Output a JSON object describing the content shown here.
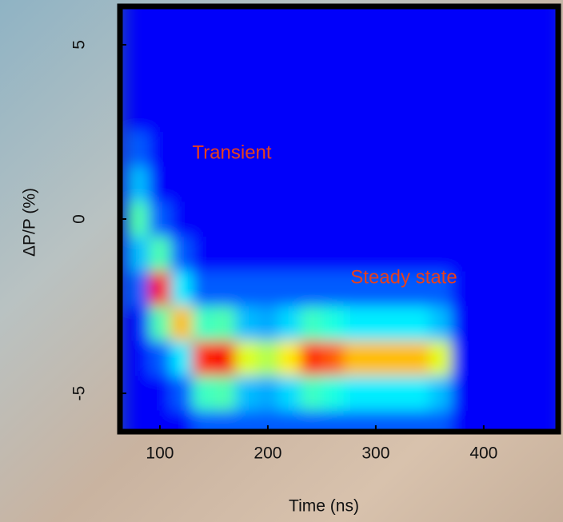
{
  "chart_data": {
    "type": "heatmap",
    "x_label": "Time (ns)",
    "y_label": "ΔP/P (%)",
    "annotations": [
      "Transient",
      "Steady state"
    ],
    "xlim": [
      63,
      469
    ],
    "ylim": [
      -6.1,
      6.1
    ],
    "xticks": [
      100,
      200,
      300,
      400
    ],
    "yticks": [
      5,
      0,
      -5
    ],
    "colormap": "jet",
    "x": [
      80,
      100,
      120,
      140,
      160,
      180,
      200,
      220,
      240,
      260,
      280,
      300,
      320,
      340,
      360,
      380,
      400,
      420,
      440,
      460
    ],
    "y": [
      6,
      5,
      4,
      3,
      2,
      1,
      0,
      -1,
      -2,
      -3,
      -4,
      -5,
      -6
    ],
    "z": [
      [
        0.1,
        0.1,
        0.1,
        0.1,
        0.1,
        0.1,
        0.1,
        0.1,
        0.1,
        0.1,
        0.1,
        0.1,
        0.1,
        0.1,
        0.1,
        0.1,
        0.1,
        0.1,
        0.1,
        0.1
      ],
      [
        0.1,
        0.1,
        0.1,
        0.1,
        0.1,
        0.1,
        0.1,
        0.1,
        0.1,
        0.1,
        0.1,
        0.1,
        0.1,
        0.1,
        0.1,
        0.1,
        0.1,
        0.1,
        0.1,
        0.1
      ],
      [
        0.1,
        0.1,
        0.1,
        0.1,
        0.1,
        0.1,
        0.1,
        0.1,
        0.1,
        0.1,
        0.1,
        0.1,
        0.1,
        0.1,
        0.1,
        0.1,
        0.1,
        0.1,
        0.1,
        0.1
      ],
      [
        0.1,
        0.1,
        0.1,
        0.1,
        0.1,
        0.1,
        0.1,
        0.1,
        0.1,
        0.1,
        0.1,
        0.1,
        0.1,
        0.1,
        0.1,
        0.1,
        0.1,
        0.1,
        0.1,
        0.1
      ],
      [
        0.2,
        0.1,
        0.1,
        0.1,
        0.1,
        0.1,
        0.1,
        0.1,
        0.1,
        0.1,
        0.1,
        0.1,
        0.1,
        0.1,
        0.1,
        0.1,
        0.1,
        0.1,
        0.1,
        0.1
      ],
      [
        0.3,
        0.1,
        0.1,
        0.1,
        0.1,
        0.1,
        0.1,
        0.1,
        0.1,
        0.1,
        0.1,
        0.1,
        0.1,
        0.1,
        0.1,
        0.1,
        0.1,
        0.1,
        0.1,
        0.1
      ],
      [
        0.45,
        0.2,
        0.1,
        0.1,
        0.1,
        0.1,
        0.1,
        0.1,
        0.1,
        0.1,
        0.1,
        0.1,
        0.1,
        0.1,
        0.1,
        0.1,
        0.1,
        0.1,
        0.1,
        0.1
      ],
      [
        0.3,
        0.45,
        0.2,
        0.1,
        0.1,
        0.1,
        0.1,
        0.1,
        0.1,
        0.1,
        0.1,
        0.1,
        0.1,
        0.1,
        0.1,
        0.1,
        0.1,
        0.1,
        0.1,
        0.1
      ],
      [
        0.2,
        0.9,
        0.35,
        0.2,
        0.2,
        0.2,
        0.2,
        0.2,
        0.2,
        0.2,
        0.2,
        0.2,
        0.2,
        0.2,
        0.2,
        0.1,
        0.1,
        0.1,
        0.1,
        0.1
      ],
      [
        0.1,
        0.45,
        0.7,
        0.43,
        0.45,
        0.3,
        0.28,
        0.33,
        0.43,
        0.4,
        0.35,
        0.35,
        0.35,
        0.35,
        0.3,
        0.1,
        0.1,
        0.1,
        0.1,
        0.1
      ],
      [
        0.1,
        0.2,
        0.35,
        0.85,
        0.9,
        0.6,
        0.55,
        0.65,
        0.85,
        0.8,
        0.7,
        0.7,
        0.7,
        0.7,
        0.6,
        0.1,
        0.1,
        0.1,
        0.1,
        0.1
      ],
      [
        0.1,
        0.1,
        0.2,
        0.43,
        0.45,
        0.3,
        0.28,
        0.33,
        0.43,
        0.4,
        0.35,
        0.35,
        0.35,
        0.35,
        0.3,
        0.1,
        0.1,
        0.1,
        0.1,
        0.1
      ],
      [
        0.1,
        0.1,
        0.1,
        0.2,
        0.2,
        0.2,
        0.2,
        0.2,
        0.2,
        0.2,
        0.2,
        0.2,
        0.2,
        0.2,
        0.2,
        0.1,
        0.1,
        0.1,
        0.1,
        0.1
      ]
    ]
  }
}
